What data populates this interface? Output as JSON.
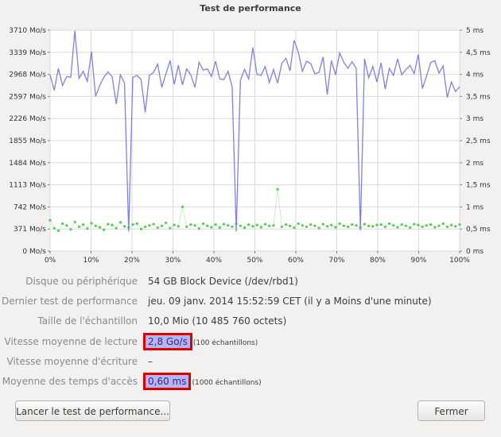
{
  "window": {
    "title": "Test de performance"
  },
  "chart_data": {
    "type": "line",
    "x": [
      0,
      1,
      2,
      3,
      4,
      5,
      6,
      7,
      8,
      9,
      10,
      11,
      12,
      13,
      14,
      15,
      16,
      17,
      18,
      19,
      20,
      21,
      22,
      23,
      24,
      25,
      26,
      27,
      28,
      29,
      30,
      31,
      32,
      33,
      34,
      35,
      36,
      37,
      38,
      39,
      40,
      41,
      42,
      43,
      44,
      45,
      46,
      47,
      48,
      49,
      50,
      51,
      52,
      53,
      54,
      55,
      56,
      57,
      58,
      59,
      60,
      61,
      62,
      63,
      64,
      65,
      66,
      67,
      68,
      69,
      70,
      71,
      72,
      73,
      74,
      75,
      76,
      77,
      78,
      79,
      80,
      81,
      82,
      83,
      84,
      85,
      86,
      87,
      88,
      89,
      90,
      91,
      92,
      93,
      94,
      95,
      96,
      97,
      98,
      99
    ],
    "series": [
      {
        "values": [
          2960,
          2700,
          3070,
          2780,
          2930,
          2920,
          3700,
          2900,
          3020,
          2850,
          3350,
          2600,
          2780,
          2920,
          3010,
          2930,
          2470,
          2960,
          2820,
          330,
          2920,
          2950,
          2880,
          2330,
          2950,
          3000,
          3140,
          2750,
          2980,
          3200,
          2800,
          3120,
          2790,
          3060,
          2960,
          2750,
          3170,
          3040,
          3060,
          2930,
          3190,
          2890,
          2880,
          3020,
          2760,
          330,
          2870,
          3050,
          2890,
          3420,
          2970,
          2950,
          3100,
          2830,
          3050,
          2820,
          3150,
          3240,
          3030,
          3540,
          3340,
          3020,
          3190,
          3150,
          2980,
          3000,
          3260,
          2630,
          3200,
          2960,
          3330,
          3170,
          3070,
          3180,
          3070,
          350,
          3230,
          2910,
          3100,
          2840,
          3160,
          2720,
          3070,
          2950,
          3230,
          2960,
          3050,
          3120,
          2980,
          3300,
          2730,
          2940,
          3170,
          3200,
          2990,
          3110,
          2580,
          2840,
          2680,
          2760
        ],
        "color": "#8080e8"
      },
      {
        "values": [
          0.7,
          0.52,
          0.46,
          0.62,
          0.58,
          0.49,
          0.66,
          0.55,
          0.6,
          0.51,
          0.63,
          0.57,
          0.54,
          0.48,
          0.61,
          0.59,
          0.52,
          0.65,
          0.56,
          0.53,
          0.6,
          0.62,
          0.5,
          0.55,
          0.58,
          0.61,
          0.53,
          0.57,
          0.64,
          0.52,
          0.59,
          0.56,
          1.0,
          0.55,
          0.6,
          0.58,
          0.51,
          0.62,
          0.57,
          0.54,
          0.6,
          0.53,
          0.61,
          0.58,
          0.55,
          0.62,
          0.57,
          0.53,
          0.6,
          0.56,
          0.59,
          0.54,
          0.61,
          0.57,
          0.58,
          1.4,
          0.55,
          0.6,
          0.57,
          0.53,
          0.62,
          0.58,
          0.55,
          0.6,
          0.57,
          0.52,
          0.61,
          0.56,
          0.59,
          0.54,
          0.62,
          0.57,
          0.55,
          0.6,
          0.58,
          0.53,
          0.61,
          0.57,
          0.56,
          0.59,
          0.6,
          0.55,
          0.62,
          0.58,
          0.54,
          0.6,
          0.57,
          0.53,
          0.61,
          0.59,
          0.55,
          0.58,
          0.6,
          0.54,
          0.57,
          0.62,
          0.55,
          0.59,
          0.56,
          0.6
        ],
        "color": "#55cc55"
      }
    ],
    "x_ticks": [
      "0%",
      "10%",
      "20%",
      "30%",
      "40%",
      "50%",
      "60%",
      "70%",
      "80%",
      "90%",
      "100%"
    ],
    "y_left_ticks": [
      "0 Mo/s",
      "371 Mo/s",
      "742 Mo/s",
      "1113 Mo/s",
      "1484 Mo/s",
      "1855 Mo/s",
      "2226 Mo/s",
      "2597 Mo/s",
      "2968 Mo/s",
      "3339 Mo/s",
      "3710 Mo/s"
    ],
    "y_right_ticks": [
      "0 ms",
      "0,5 ms",
      "1 ms",
      "1,5 ms",
      "2 ms",
      "2,5 ms",
      "3 ms",
      "3,5 ms",
      "4 ms",
      "4,5 ms",
      "5 ms"
    ],
    "ylim_left": [
      0,
      3710
    ],
    "ylim_right": [
      0,
      5
    ],
    "grid": true
  },
  "info": {
    "device_label": "Disque ou périphérique",
    "device_value": "54 GB Block Device (/dev/rbd1)",
    "last_test_label": "Dernier test de performance",
    "last_test_value": "jeu. 09 janv. 2014 15:52:59 CET (il y a Moins d'une minute)",
    "sample_size_label": "Taille de l'échantillon",
    "sample_size_value": "10,0 Mio (10 485 760 octets)",
    "read_label": "Vitesse moyenne de lecture",
    "read_value": "2,8 Go/s",
    "read_samples": "(100 échantillons)",
    "write_label": "Vitesse moyenne d'écriture",
    "write_value": "–",
    "access_label": "Moyenne des temps d'accès",
    "access_value": "0,60 ms",
    "access_samples": "(1000 échantillons)"
  },
  "buttons": {
    "start_label": "Lancer le test de performance...",
    "close_label": "Fermer"
  }
}
